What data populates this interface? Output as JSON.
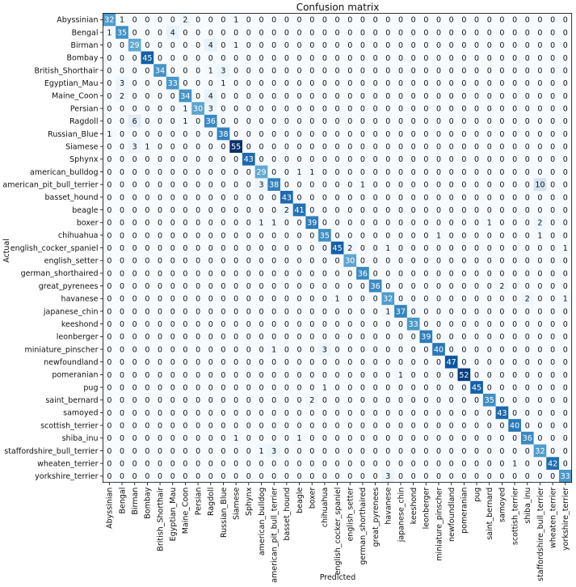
{
  "chart_data": {
    "type": "heatmap",
    "title": "Confusion matrix",
    "xlabel": "Predicted",
    "ylabel": "Actual",
    "colormap": "Blues",
    "vmax": 55,
    "labels": [
      "Abyssinian",
      "Bengal",
      "Birman",
      "Bombay",
      "British_Shorthair",
      "Egyptian_Mau",
      "Maine_Coon",
      "Persian",
      "Ragdoll",
      "Russian_Blue",
      "Siamese",
      "Sphynx",
      "american_bulldog",
      "american_pit_bull_terrier",
      "basset_hound",
      "beagle",
      "boxer",
      "chihuahua",
      "english_cocker_spaniel",
      "english_setter",
      "german_shorthaired",
      "great_pyrenees",
      "havanese",
      "japanese_chin",
      "keeshond",
      "leonberger",
      "miniature_pinscher",
      "newfoundland",
      "pomeranian",
      "pug",
      "saint_bernard",
      "samoyed",
      "scottish_terrier",
      "shiba_inu",
      "staffordshire_bull_terrier",
      "wheaten_terrier",
      "yorkshire_terrier"
    ],
    "matrix": [
      [
        32,
        1,
        0,
        0,
        0,
        0,
        2,
        0,
        0,
        0,
        1,
        0,
        0,
        0,
        0,
        0,
        0,
        0,
        0,
        0,
        0,
        0,
        0,
        0,
        0,
        0,
        0,
        0,
        0,
        0,
        0,
        0,
        0,
        0,
        0,
        0,
        0
      ],
      [
        1,
        35,
        0,
        0,
        0,
        4,
        0,
        0,
        0,
        0,
        0,
        0,
        0,
        0,
        0,
        0,
        0,
        0,
        0,
        0,
        0,
        0,
        0,
        0,
        0,
        0,
        0,
        0,
        0,
        0,
        0,
        0,
        0,
        0,
        0,
        0,
        0
      ],
      [
        0,
        0,
        29,
        0,
        0,
        0,
        0,
        0,
        4,
        0,
        1,
        0,
        0,
        0,
        0,
        0,
        0,
        0,
        0,
        0,
        0,
        0,
        0,
        0,
        0,
        0,
        0,
        0,
        0,
        0,
        0,
        0,
        0,
        0,
        0,
        0,
        0
      ],
      [
        0,
        0,
        0,
        45,
        0,
        0,
        0,
        0,
        0,
        0,
        0,
        0,
        0,
        0,
        0,
        0,
        0,
        0,
        0,
        0,
        0,
        0,
        0,
        0,
        0,
        0,
        0,
        0,
        0,
        0,
        0,
        0,
        0,
        0,
        0,
        0,
        0
      ],
      [
        0,
        0,
        0,
        0,
        34,
        0,
        0,
        0,
        1,
        3,
        0,
        0,
        0,
        0,
        0,
        0,
        0,
        0,
        0,
        0,
        0,
        0,
        0,
        0,
        0,
        0,
        0,
        0,
        0,
        0,
        0,
        0,
        0,
        0,
        0,
        0,
        0
      ],
      [
        0,
        3,
        0,
        0,
        0,
        33,
        0,
        0,
        0,
        1,
        0,
        0,
        0,
        0,
        0,
        0,
        0,
        0,
        0,
        0,
        0,
        0,
        0,
        0,
        0,
        0,
        0,
        0,
        0,
        0,
        0,
        0,
        0,
        0,
        0,
        0,
        0
      ],
      [
        0,
        2,
        0,
        0,
        0,
        0,
        34,
        0,
        4,
        0,
        0,
        0,
        0,
        0,
        0,
        0,
        0,
        0,
        0,
        0,
        0,
        0,
        0,
        0,
        0,
        0,
        0,
        0,
        0,
        0,
        0,
        0,
        0,
        0,
        0,
        0,
        0
      ],
      [
        0,
        0,
        0,
        0,
        0,
        0,
        1,
        30,
        3,
        0,
        0,
        0,
        0,
        0,
        0,
        0,
        0,
        0,
        0,
        0,
        0,
        0,
        0,
        0,
        0,
        0,
        0,
        0,
        0,
        0,
        0,
        0,
        0,
        0,
        0,
        0,
        0
      ],
      [
        0,
        0,
        6,
        0,
        0,
        0,
        1,
        0,
        36,
        0,
        0,
        0,
        0,
        0,
        0,
        0,
        0,
        0,
        0,
        0,
        0,
        0,
        0,
        0,
        0,
        0,
        0,
        0,
        0,
        0,
        0,
        0,
        0,
        0,
        0,
        0,
        0
      ],
      [
        1,
        0,
        0,
        0,
        0,
        0,
        0,
        0,
        0,
        38,
        0,
        0,
        0,
        0,
        0,
        0,
        0,
        0,
        0,
        0,
        0,
        0,
        0,
        0,
        0,
        0,
        0,
        0,
        0,
        0,
        0,
        0,
        0,
        0,
        0,
        0,
        0
      ],
      [
        0,
        0,
        3,
        1,
        0,
        0,
        0,
        0,
        0,
        0,
        55,
        0,
        0,
        0,
        0,
        0,
        0,
        0,
        0,
        0,
        0,
        0,
        0,
        0,
        0,
        0,
        0,
        0,
        0,
        0,
        0,
        0,
        0,
        0,
        0,
        0,
        0
      ],
      [
        0,
        0,
        0,
        0,
        0,
        0,
        0,
        0,
        0,
        0,
        0,
        43,
        0,
        0,
        0,
        0,
        0,
        0,
        0,
        0,
        0,
        0,
        0,
        0,
        0,
        0,
        0,
        0,
        0,
        0,
        0,
        0,
        0,
        0,
        0,
        0,
        0
      ],
      [
        0,
        0,
        0,
        0,
        0,
        0,
        0,
        0,
        0,
        0,
        0,
        0,
        29,
        0,
        0,
        1,
        1,
        0,
        0,
        0,
        0,
        0,
        0,
        0,
        0,
        0,
        0,
        0,
        0,
        0,
        0,
        0,
        0,
        0,
        0,
        0,
        0
      ],
      [
        0,
        0,
        0,
        0,
        0,
        0,
        0,
        0,
        0,
        0,
        0,
        0,
        3,
        38,
        0,
        0,
        0,
        0,
        0,
        0,
        1,
        0,
        0,
        0,
        0,
        0,
        0,
        0,
        0,
        0,
        0,
        0,
        0,
        0,
        10,
        0,
        0
      ],
      [
        0,
        0,
        0,
        0,
        0,
        0,
        0,
        0,
        0,
        0,
        0,
        0,
        0,
        0,
        43,
        0,
        0,
        0,
        0,
        0,
        0,
        0,
        0,
        0,
        0,
        0,
        0,
        0,
        0,
        0,
        0,
        0,
        0,
        0,
        0,
        0,
        0
      ],
      [
        0,
        0,
        0,
        0,
        0,
        0,
        0,
        0,
        0,
        0,
        0,
        0,
        0,
        0,
        2,
        41,
        0,
        0,
        0,
        0,
        0,
        0,
        0,
        0,
        0,
        0,
        0,
        0,
        0,
        0,
        0,
        0,
        0,
        0,
        0,
        0,
        0
      ],
      [
        0,
        0,
        0,
        0,
        0,
        0,
        0,
        0,
        0,
        0,
        0,
        0,
        1,
        1,
        0,
        0,
        39,
        0,
        0,
        0,
        0,
        0,
        0,
        0,
        0,
        0,
        0,
        0,
        0,
        0,
        1,
        0,
        0,
        0,
        2,
        0,
        0
      ],
      [
        0,
        0,
        0,
        0,
        0,
        0,
        0,
        0,
        0,
        0,
        0,
        0,
        0,
        0,
        0,
        0,
        0,
        35,
        0,
        0,
        0,
        0,
        0,
        0,
        0,
        0,
        1,
        0,
        0,
        0,
        0,
        0,
        0,
        0,
        1,
        0,
        0
      ],
      [
        0,
        0,
        0,
        0,
        0,
        0,
        0,
        0,
        0,
        0,
        0,
        0,
        0,
        0,
        0,
        0,
        0,
        0,
        45,
        2,
        0,
        0,
        1,
        0,
        0,
        0,
        0,
        0,
        0,
        0,
        0,
        0,
        0,
        0,
        0,
        0,
        1
      ],
      [
        0,
        0,
        0,
        0,
        0,
        0,
        0,
        0,
        0,
        0,
        0,
        0,
        0,
        0,
        0,
        0,
        0,
        0,
        0,
        30,
        0,
        0,
        0,
        0,
        0,
        0,
        0,
        0,
        0,
        0,
        0,
        0,
        0,
        0,
        0,
        0,
        0
      ],
      [
        0,
        0,
        0,
        0,
        0,
        0,
        0,
        0,
        0,
        0,
        0,
        0,
        0,
        0,
        0,
        0,
        0,
        0,
        0,
        0,
        36,
        0,
        0,
        0,
        0,
        0,
        0,
        0,
        0,
        0,
        0,
        0,
        0,
        0,
        0,
        0,
        0
      ],
      [
        0,
        0,
        0,
        0,
        0,
        0,
        0,
        0,
        0,
        0,
        0,
        0,
        0,
        0,
        0,
        0,
        0,
        0,
        0,
        0,
        0,
        36,
        0,
        0,
        0,
        0,
        0,
        0,
        0,
        0,
        0,
        2,
        0,
        0,
        0,
        0,
        0
      ],
      [
        0,
        0,
        0,
        0,
        0,
        0,
        0,
        0,
        0,
        0,
        0,
        0,
        0,
        0,
        0,
        0,
        0,
        0,
        1,
        0,
        0,
        0,
        32,
        0,
        0,
        0,
        0,
        0,
        0,
        0,
        0,
        0,
        0,
        2,
        0,
        0,
        1
      ],
      [
        0,
        0,
        0,
        0,
        0,
        0,
        0,
        0,
        0,
        0,
        0,
        0,
        0,
        0,
        0,
        0,
        0,
        0,
        0,
        0,
        0,
        0,
        1,
        37,
        0,
        0,
        0,
        0,
        0,
        0,
        0,
        0,
        0,
        0,
        0,
        0,
        0
      ],
      [
        0,
        0,
        0,
        0,
        0,
        0,
        0,
        0,
        0,
        0,
        0,
        0,
        0,
        0,
        0,
        0,
        0,
        0,
        0,
        0,
        0,
        0,
        0,
        0,
        33,
        0,
        0,
        0,
        0,
        0,
        0,
        0,
        0,
        0,
        0,
        0,
        0
      ],
      [
        0,
        0,
        0,
        0,
        0,
        0,
        0,
        0,
        0,
        0,
        0,
        0,
        0,
        0,
        0,
        0,
        0,
        0,
        0,
        0,
        0,
        0,
        0,
        0,
        0,
        39,
        0,
        0,
        0,
        0,
        0,
        0,
        0,
        0,
        0,
        0,
        0
      ],
      [
        0,
        0,
        0,
        0,
        0,
        0,
        0,
        0,
        0,
        0,
        0,
        0,
        0,
        1,
        0,
        0,
        0,
        3,
        0,
        0,
        0,
        0,
        0,
        0,
        0,
        0,
        40,
        0,
        0,
        0,
        0,
        0,
        0,
        0,
        0,
        0,
        0
      ],
      [
        0,
        0,
        0,
        0,
        0,
        0,
        0,
        0,
        0,
        0,
        0,
        0,
        0,
        0,
        0,
        0,
        0,
        0,
        0,
        0,
        0,
        0,
        0,
        0,
        0,
        0,
        0,
        47,
        0,
        0,
        0,
        0,
        0,
        0,
        0,
        0,
        0
      ],
      [
        0,
        0,
        0,
        0,
        0,
        0,
        0,
        0,
        0,
        0,
        0,
        0,
        0,
        0,
        0,
        0,
        0,
        0,
        0,
        0,
        0,
        0,
        0,
        1,
        0,
        0,
        0,
        0,
        52,
        0,
        0,
        0,
        0,
        0,
        0,
        0,
        0
      ],
      [
        0,
        0,
        0,
        0,
        0,
        0,
        0,
        0,
        0,
        0,
        0,
        0,
        0,
        0,
        0,
        0,
        0,
        1,
        0,
        0,
        0,
        0,
        0,
        0,
        0,
        0,
        0,
        0,
        0,
        45,
        0,
        0,
        0,
        0,
        0,
        0,
        0
      ],
      [
        0,
        0,
        0,
        0,
        0,
        0,
        0,
        0,
        0,
        0,
        0,
        0,
        0,
        0,
        0,
        0,
        2,
        0,
        0,
        0,
        0,
        0,
        0,
        0,
        0,
        0,
        0,
        0,
        0,
        0,
        35,
        0,
        0,
        0,
        0,
        0,
        0
      ],
      [
        0,
        0,
        0,
        0,
        0,
        0,
        0,
        0,
        0,
        0,
        0,
        0,
        0,
        0,
        0,
        0,
        0,
        0,
        0,
        0,
        0,
        0,
        0,
        0,
        0,
        0,
        0,
        0,
        0,
        0,
        0,
        43,
        0,
        0,
        0,
        0,
        0
      ],
      [
        0,
        0,
        0,
        0,
        0,
        0,
        0,
        0,
        0,
        0,
        0,
        0,
        0,
        0,
        0,
        0,
        0,
        0,
        0,
        0,
        0,
        0,
        0,
        0,
        0,
        0,
        0,
        0,
        0,
        0,
        0,
        0,
        40,
        0,
        0,
        0,
        0
      ],
      [
        0,
        0,
        0,
        0,
        0,
        0,
        0,
        0,
        0,
        0,
        1,
        0,
        0,
        0,
        0,
        1,
        0,
        0,
        0,
        0,
        0,
        0,
        0,
        0,
        0,
        0,
        0,
        0,
        0,
        0,
        0,
        0,
        0,
        36,
        0,
        0,
        0
      ],
      [
        0,
        0,
        0,
        0,
        0,
        0,
        0,
        0,
        0,
        0,
        0,
        0,
        1,
        3,
        0,
        0,
        0,
        0,
        0,
        0,
        0,
        0,
        0,
        0,
        0,
        0,
        0,
        0,
        0,
        0,
        0,
        0,
        0,
        0,
        32,
        0,
        0
      ],
      [
        0,
        0,
        0,
        0,
        0,
        0,
        0,
        0,
        0,
        0,
        0,
        0,
        0,
        0,
        0,
        0,
        0,
        0,
        0,
        0,
        0,
        0,
        0,
        0,
        0,
        0,
        0,
        0,
        0,
        0,
        0,
        0,
        1,
        0,
        0,
        42,
        0
      ],
      [
        0,
        0,
        0,
        0,
        0,
        0,
        0,
        0,
        0,
        0,
        0,
        0,
        0,
        0,
        0,
        0,
        0,
        0,
        0,
        0,
        0,
        0,
        3,
        0,
        0,
        0,
        0,
        0,
        0,
        0,
        0,
        0,
        0,
        0,
        0,
        0,
        33
      ]
    ]
  }
}
